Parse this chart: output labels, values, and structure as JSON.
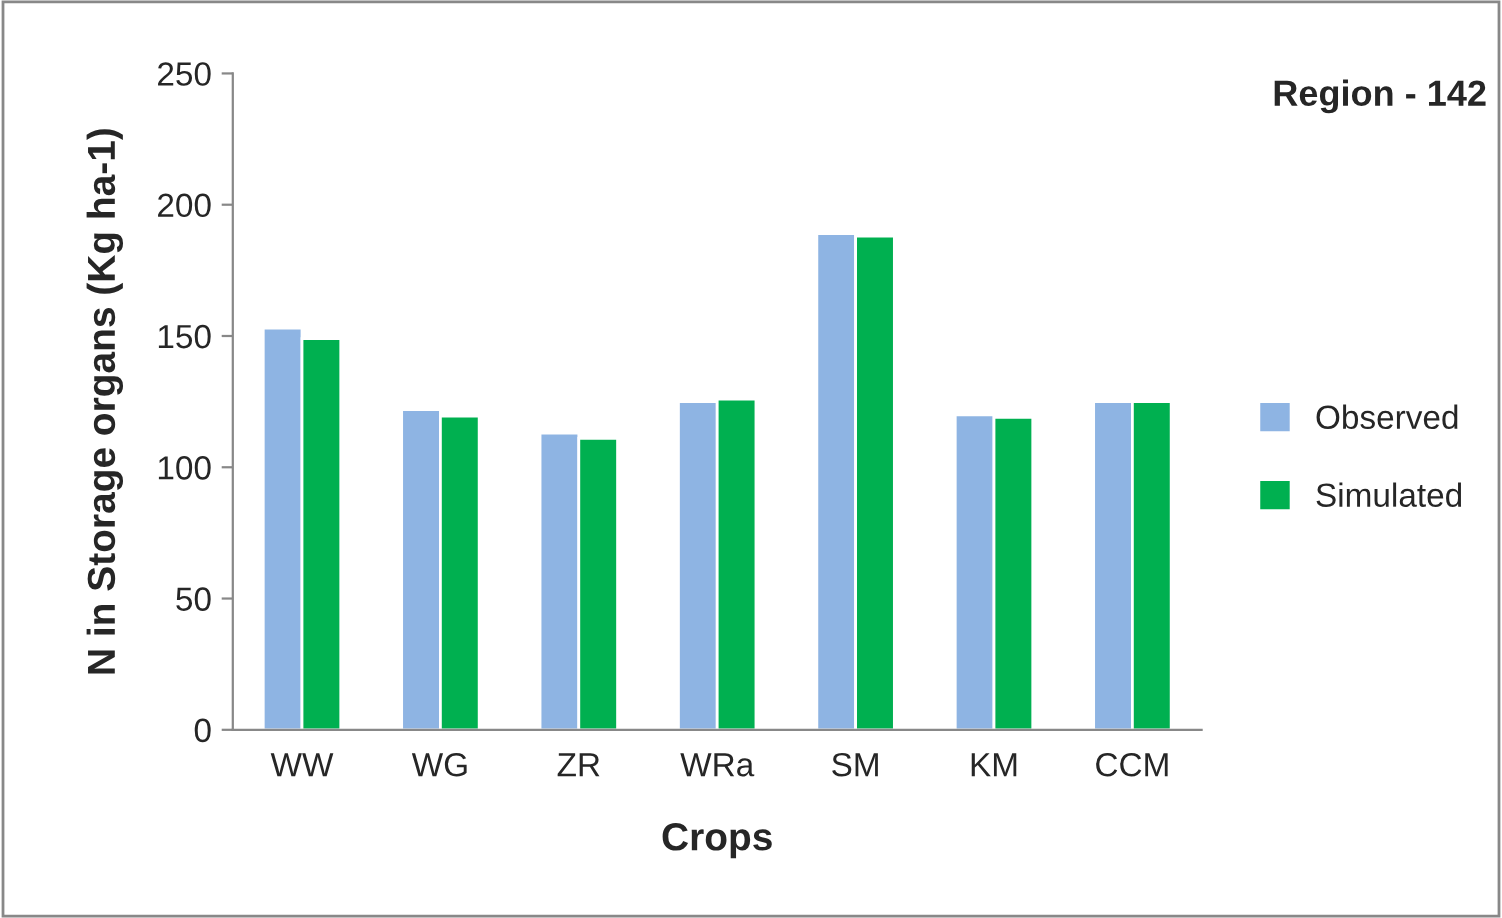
{
  "chart_data": {
    "type": "bar",
    "title": "Region - 142",
    "xlabel": "Crops",
    "ylabel": "N in Storage organs (Kg ha-1)",
    "categories": [
      "WW",
      "WG",
      "ZR",
      "WRa",
      "SM",
      "KM",
      "CCM"
    ],
    "series": [
      {
        "name": "Observed",
        "color": "#8eb4e3",
        "values": [
          153,
          122,
          113,
          125,
          189,
          120,
          125
        ]
      },
      {
        "name": "Simulated",
        "color": "#00b050",
        "values": [
          149,
          119.5,
          111,
          126,
          188,
          119,
          125
        ]
      }
    ],
    "ylim": [
      0,
      250
    ],
    "yticks": [
      0,
      50,
      100,
      150,
      200,
      250
    ],
    "grid": false,
    "legend": "right"
  }
}
